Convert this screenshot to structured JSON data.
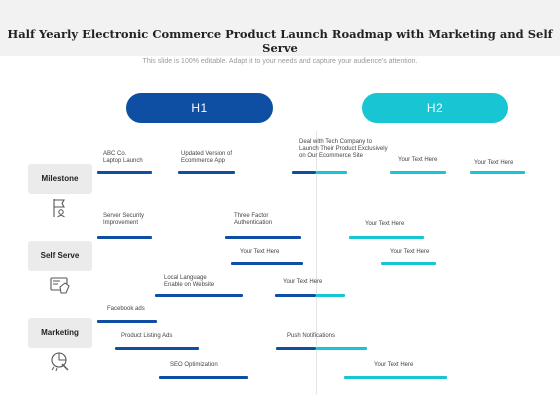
{
  "header": {
    "title": "Half Yearly Electronic Commerce Product Launch Roadmap with Marketing and Self Serve",
    "subtitle": "This slide is 100% editable. Adapt it to your needs and capture your audience's attention."
  },
  "phases": {
    "h1": "H1",
    "h2": "H2"
  },
  "categories": {
    "milestone": "Milestone",
    "self_serve": "Self Serve",
    "marketing": "Marketing"
  },
  "icons": {
    "milestone": "flag-icon",
    "self_serve": "self-serve-icon",
    "marketing": "marketing-icon"
  },
  "colors": {
    "h1": "#0f4fa3",
    "h2": "#17c5d3"
  },
  "tasks": {
    "m1": [
      "ABC Co.",
      "Laptop Launch"
    ],
    "m2": [
      "Updated Version of",
      "Ecommerce App"
    ],
    "m3": [
      "Deal with Tech Company to",
      "Launch Their Product Exclusively",
      "on Our Ecommerce Site"
    ],
    "m4": "Your Text Here",
    "m5": "Your Text Here",
    "s1": [
      "Server Security",
      "Improvement"
    ],
    "s2": [
      "Three Factor",
      "Authentication"
    ],
    "s3": "Your Text Here",
    "s4": "Your Text Here",
    "s5": "Your Text Here",
    "s6": [
      "Local Language",
      "Enable on Website"
    ],
    "s7": "Your Text Here",
    "k1": "Facebook ads",
    "k2": "Product Listing Ads",
    "k3": "Push Notifications",
    "k4": "SEO  Optimization",
    "k5": "Your Text Here"
  }
}
